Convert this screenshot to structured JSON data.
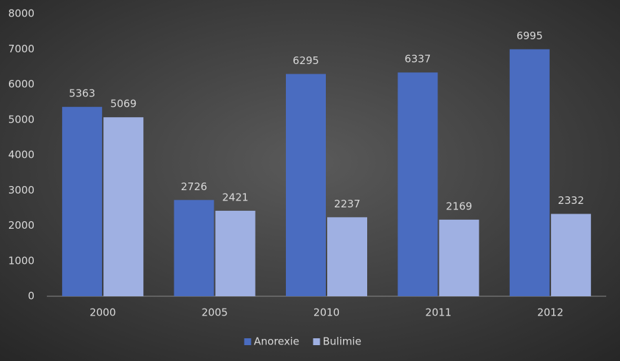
{
  "chart_data": {
    "type": "bar",
    "categories": [
      "2000",
      "2005",
      "2010",
      "2011",
      "2012"
    ],
    "series": [
      {
        "name": "Anorexie",
        "color": "#4a6cc0",
        "values": [
          5363,
          2726,
          6295,
          6337,
          6995
        ]
      },
      {
        "name": "Bulimie",
        "color": "#9fb0e2",
        "values": [
          5069,
          2421,
          2237,
          2169,
          2332
        ]
      }
    ],
    "ylim": [
      0,
      8000
    ],
    "yticks": [
      0,
      1000,
      2000,
      3000,
      4000,
      5000,
      6000,
      7000,
      8000
    ],
    "grid": false,
    "legend": "bottom",
    "data_labels": true
  }
}
